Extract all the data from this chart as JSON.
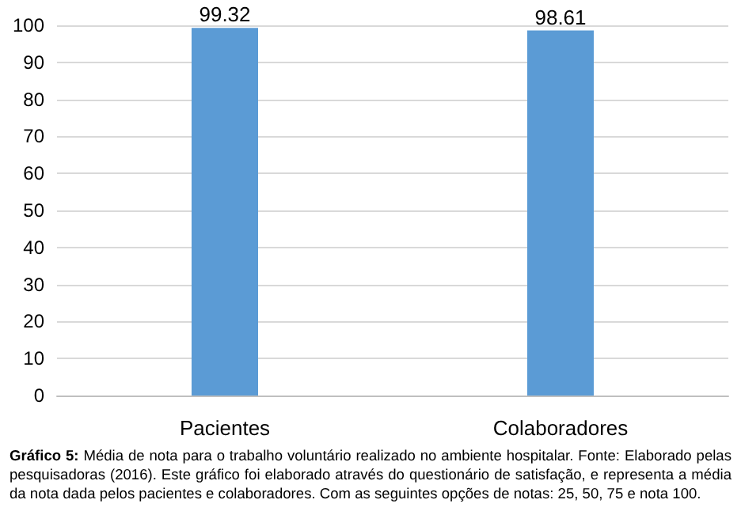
{
  "chart_data": {
    "type": "bar",
    "categories": [
      "Pacientes",
      "Colaboradores"
    ],
    "values": [
      99.32,
      98.61
    ],
    "color": "#5b9bd5",
    "ylim": [
      0,
      100
    ],
    "yticks": [
      0,
      10,
      20,
      30,
      40,
      50,
      60,
      70,
      80,
      90,
      100
    ],
    "grid": "y",
    "data_labels": true,
    "annotations": [
      "Gráfico 5:",
      "Média de nota para o trabalho voluntário realizado no ambiente hospitalar. Fonte: Elaborado pelas pesquisadoras (2016). Este gráfico foi elaborado através do questionário de satisfação, e representa a média da nota dada pelos pacientes e colaboradores. Com as seguintes opções de notas: 25, 50, 75 e nota 100."
    ]
  }
}
